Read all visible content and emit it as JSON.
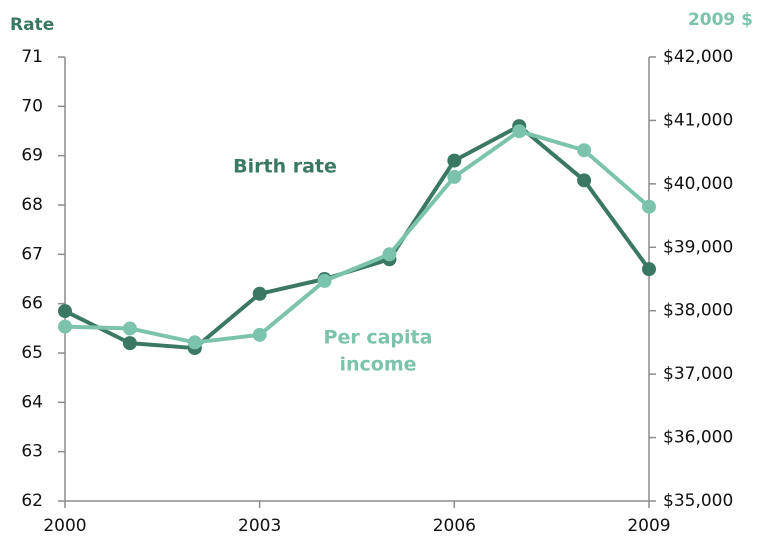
{
  "chart_data": {
    "type": "line",
    "y_label": "Rate",
    "y2_label": "2009 $",
    "x": [
      2000,
      2001,
      2002,
      2003,
      2004,
      2005,
      2006,
      2007,
      2008,
      2009
    ],
    "xlim": [
      2000,
      2009
    ],
    "xticks": [
      2000,
      2003,
      2006,
      2009
    ],
    "ylim": [
      62,
      71
    ],
    "yticks": [
      62,
      63,
      64,
      65,
      66,
      67,
      68,
      69,
      70,
      71
    ],
    "y2lim": [
      35000,
      42000
    ],
    "y2ticks": [
      {
        "value": 35000,
        "label": "$35,000"
      },
      {
        "value": 36000,
        "label": "$36,000"
      },
      {
        "value": 37000,
        "label": "$37,000"
      },
      {
        "value": 38000,
        "label": "$38,000"
      },
      {
        "value": 39000,
        "label": "$39,000"
      },
      {
        "value": 40000,
        "label": "$40,000"
      },
      {
        "value": 41000,
        "label": "$41,000"
      },
      {
        "value": 42000,
        "label": "$42,000"
      }
    ],
    "series": [
      {
        "label_lines": [
          "Birth rate"
        ],
        "color": "#3b7864",
        "values": [
          65.85,
          65.2,
          65.1,
          66.2,
          66.5,
          66.9,
          68.9,
          69.6,
          68.5,
          66.7
        ]
      },
      {
        "label_lines": [
          "Per capita",
          "income"
        ],
        "color": "#7cc3ad",
        "axis": "y2",
        "values": [
          37750,
          37720,
          37500,
          37620,
          38470,
          38890,
          40110,
          40830,
          40530,
          39640
        ]
      }
    ]
  }
}
